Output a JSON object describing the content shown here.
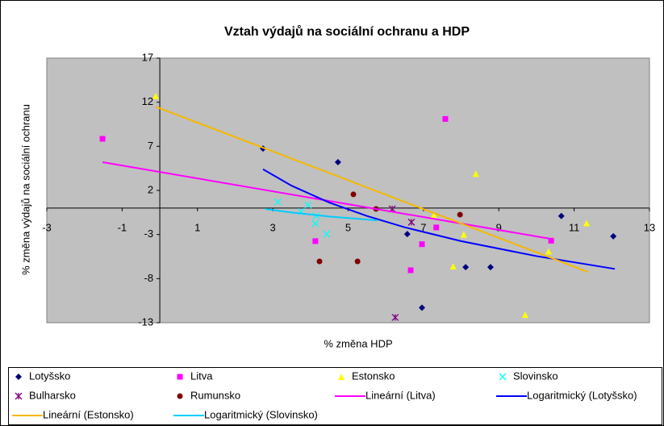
{
  "chart_data": {
    "type": "scatter",
    "title": "Vztah výdajů na sociální ochranu a HDP",
    "x_label": "% změna HDP",
    "y_label": "% změna výdajů na sociální ochranu",
    "xlim": [
      -3,
      13
    ],
    "xticks": [
      -3,
      -1,
      1,
      3,
      5,
      7,
      9,
      11,
      13
    ],
    "ylim": [
      -13,
      17
    ],
    "yticks": [
      -13,
      -8,
      -3,
      2,
      7,
      12,
      17
    ],
    "grid": false,
    "legend": "bottom",
    "plot_background": "#c0c0c0",
    "series": [
      {
        "name": "Lotyšsko",
        "color": "#000080",
        "marker": "diamond",
        "x": [
          2.74,
          4.73,
          6.57,
          6.96,
          8.12,
          8.78,
          10.66,
          12.04
        ],
        "values": [
          6.75,
          5.2,
          -2.95,
          -11.3,
          -6.7,
          -6.7,
          -0.9,
          -3.2
        ]
      },
      {
        "name": "Litva",
        "color": "#ff00ff",
        "marker": "square",
        "x": [
          -1.52,
          7.58,
          4.13,
          6.96,
          6.66,
          7.34,
          10.39
        ],
        "values": [
          7.85,
          10.1,
          -3.75,
          -4.1,
          -7.05,
          -2.2,
          -3.7
        ]
      },
      {
        "name": "Estonsko",
        "color": "#ffff00",
        "marker": "triangle",
        "x": [
          -0.11,
          8.39,
          7.79,
          9.7,
          10.32,
          11.33,
          8.07,
          7.28
        ],
        "values": [
          12.7,
          3.9,
          -6.6,
          -12.1,
          -4.9,
          -1.7,
          -3.0,
          -0.75
        ]
      },
      {
        "name": "Slovinsko",
        "color": "#00ffff",
        "marker": "x",
        "x": [
          3.13,
          4.15,
          4.13,
          4.43,
          3.75,
          3.94
        ],
        "values": [
          0.7,
          -0.9,
          -1.75,
          -2.95,
          -0.4,
          0.35
        ]
      },
      {
        "name": "Bulharsko",
        "color": "#800080",
        "marker": "asterisk",
        "x": [
          6.17,
          6.68,
          6.25
        ],
        "values": [
          -0.1,
          -1.6,
          -12.4
        ]
      },
      {
        "name": "Rumunsko",
        "color": "#800000",
        "marker": "circle",
        "x": [
          5.14,
          5.74,
          4.24,
          5.25,
          7.97
        ],
        "values": [
          1.55,
          -0.1,
          -6.05,
          -6.05,
          -0.75
        ]
      },
      {
        "name": "Lineární (Litva)",
        "color": "#ff00ff",
        "marker": "line",
        "x": [
          -1.52,
          10.39
        ],
        "values": [
          5.2,
          -3.5
        ]
      },
      {
        "name": "Logaritmický (Lotyšsko)",
        "color": "#0000ff",
        "marker": "line",
        "x": [
          2.74,
          3.5,
          4.5,
          5.5,
          6.5,
          8,
          10,
          12.08
        ],
        "values": [
          4.4,
          2.53,
          0.62,
          -0.9,
          -2.18,
          -3.75,
          -5.45,
          -6.9
        ]
      },
      {
        "name": "Lineární (Estonsko)",
        "color": "#f5b800",
        "marker": "line",
        "x": [
          -0.11,
          11.37
        ],
        "values": [
          11.5,
          -7.25
        ]
      },
      {
        "name": "Logaritmický (Slovinsko)",
        "color": "#00ccff",
        "marker": "line",
        "x": [
          2.8,
          3.5,
          4.5,
          5.78
        ],
        "values": [
          -0.1,
          -0.5,
          -0.96,
          -1.4
        ]
      }
    ]
  }
}
